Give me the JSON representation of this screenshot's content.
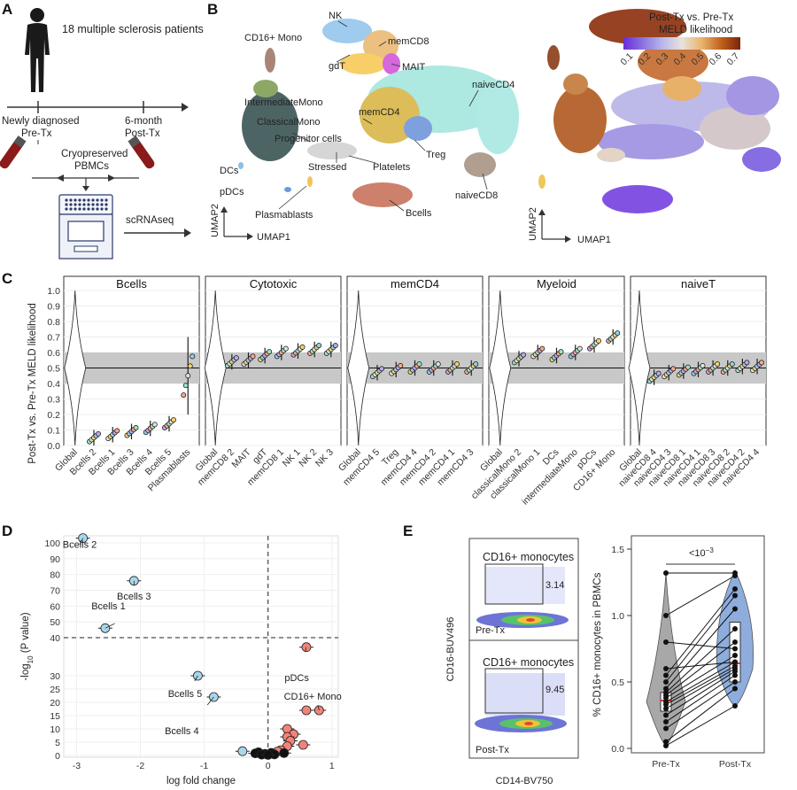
{
  "panels": {
    "A": {
      "letter": "A",
      "cohort": "18 multiple sclerosis patients",
      "t0_line1": "Newly diagnosed",
      "t0_line2": "Pre-Tx",
      "t1_line1": "6-month",
      "t1_line2": "Post-Tx",
      "cryo_line1": "Cryopreserved",
      "cryo_line2": "PBMCs",
      "method": "scRNAseq"
    },
    "B": {
      "letter": "B",
      "clusters": [
        "NK",
        "memCD8",
        "CD16+ Mono",
        "gdT",
        "MAIT",
        "naiveCD4",
        "IntermediateMono",
        "ClassicalMono",
        "memCD4",
        "Progenitor cells",
        "Treg",
        "Stressed",
        "Platelets",
        "DCs",
        "pDCs",
        "naiveCD8",
        "Plasmablasts",
        "Bcells"
      ],
      "umap_x": "UMAP1",
      "umap_y": "UMAP2",
      "legend_title_line1": "Post-Tx vs. Pre-Tx",
      "legend_title_line2": "MELD likelihood",
      "legend_ticks": [
        "0.1",
        "0.2",
        "0.3",
        "0.4",
        "0.5",
        "0.6",
        "0.7"
      ],
      "legend_colors": [
        "#6a2bdc",
        "#8a74e0",
        "#b9b7ea",
        "#e8e2dc",
        "#e9b56f",
        "#c0621c",
        "#7a2408"
      ]
    },
    "C": {
      "letter": "C",
      "ylabel": "Post-Tx vs. Pre-Tx MELD likelihood",
      "yticks": [
        "0.0",
        "0.1",
        "0.2",
        "0.3",
        "0.4",
        "0.5",
        "0.6",
        "0.7",
        "0.8",
        "0.9",
        "1.0"
      ],
      "band_color": "#c8c8c8"
    },
    "D": {
      "letter": "D",
      "xlabel": "log fold change",
      "ylabel_pre": "-log",
      "ylabel_sub": "10",
      "ylabel_post": " (P value)",
      "xticks": [
        "-3",
        "-2",
        "-1",
        "0",
        "1"
      ],
      "yticks": [
        "0",
        "5",
        "10",
        "15",
        "20",
        "25",
        "30",
        "40",
        "50",
        "60",
        "70",
        "80",
        "90",
        "100"
      ],
      "labels": [
        "Bcells 2",
        "Bcells 3",
        "Bcells 1",
        "Bcells 5",
        "Bcells 4",
        "pDCs",
        "CD16+ Mono"
      ]
    },
    "E": {
      "letter": "E",
      "gate_label": "CD16+ monocytes",
      "pre_value": "3.14",
      "post_value": "9.45",
      "pre_tag": "Pre-Tx",
      "post_tag": "Post-Tx",
      "flow_xlabel": "CD14-BV750",
      "flow_ylabel": "CD16-BUV496",
      "ylabel": "% CD16+ monocytes in PBMCs",
      "xticks": [
        "Pre-Tx",
        "Post-Tx"
      ],
      "yticks": [
        "0.0",
        "0.5",
        "1.0",
        "1.5"
      ],
      "pvalue": "<10",
      "pvalue_exp": "−3",
      "pre_color": "#9a9a9a",
      "post_color": "#7b9fd6"
    }
  },
  "chart_data": [
    {
      "id": "C",
      "type": "scatter",
      "description": "MELD likelihood by cluster, faceted",
      "ylim": [
        0,
        1
      ],
      "reference_line": 0.5,
      "band": [
        0.4,
        0.6
      ],
      "facets": [
        {
          "title": "Bcells",
          "categories": [
            "Global",
            "Bcells 2",
            "Bcells 1",
            "Bcells 3",
            "Bcells 4",
            "Bcells 5",
            "Plasmablasts"
          ],
          "values": [
            0.5,
            0.05,
            0.07,
            0.09,
            0.11,
            0.14,
            0.45
          ]
        },
        {
          "title": "Cytotoxic",
          "categories": [
            "Global",
            "memCD8 2",
            "MAIT",
            "gdT",
            "memCD8 1",
            "NK 1",
            "NK 2",
            "NK 3"
          ],
          "values": [
            0.5,
            0.54,
            0.55,
            0.58,
            0.6,
            0.61,
            0.62,
            0.62
          ]
        },
        {
          "title": "memCD4",
          "categories": [
            "Global",
            "memCD4 5",
            "Treg",
            "memCD4 4",
            "memCD4 2",
            "memCD4 1",
            "memCD4 3"
          ],
          "values": [
            0.5,
            0.47,
            0.49,
            0.5,
            0.5,
            0.5,
            0.5
          ]
        },
        {
          "title": "Myeloid",
          "categories": [
            "Global",
            "classicalMono 2",
            "classicalMono 1",
            "DCs",
            "intermediateMono",
            "pDCs",
            "CD16+ Mono"
          ],
          "values": [
            0.5,
            0.56,
            0.6,
            0.58,
            0.6,
            0.65,
            0.7
          ]
        },
        {
          "title": "naiveT",
          "categories": [
            "Global",
            "naiveCD8 4",
            "naiveCD4 3",
            "naiveCD8 1",
            "naiveCD4 1",
            "naiveCD8 3",
            "naiveCD8 2",
            "naiveCD4 2",
            "naiveCD4 4"
          ],
          "values": [
            0.5,
            0.44,
            0.47,
            0.48,
            0.49,
            0.5,
            0.5,
            0.51,
            0.51
          ]
        }
      ]
    },
    {
      "id": "D",
      "type": "scatter",
      "xlabel": "log fold change",
      "xlim": [
        -3.2,
        1.1
      ],
      "hline": 40,
      "vline": 0,
      "points": [
        {
          "x": -2.9,
          "y": 103,
          "label": "Bcells 2",
          "group": "down"
        },
        {
          "x": -2.1,
          "y": 76,
          "label": "Bcells 3",
          "group": "down"
        },
        {
          "x": -2.55,
          "y": 46,
          "label": "Bcells 1",
          "group": "down"
        },
        {
          "x": -1.1,
          "y": 30,
          "label": "Bcells 5",
          "group": "down"
        },
        {
          "x": -0.85,
          "y": 22,
          "label": "Bcells 4",
          "group": "down"
        },
        {
          "x": -0.4,
          "y": 1.6,
          "group": "down"
        },
        {
          "x": 0.6,
          "y": 34,
          "label": "pDCs",
          "group": "up"
        },
        {
          "x": 0.8,
          "y": 17,
          "label": "CD16+ Mono",
          "group": "up"
        },
        {
          "x": 0.6,
          "y": 17,
          "group": "up"
        },
        {
          "x": 0.3,
          "y": 10,
          "group": "up"
        },
        {
          "x": 0.4,
          "y": 8,
          "group": "up"
        },
        {
          "x": 0.3,
          "y": 7,
          "group": "up"
        },
        {
          "x": 0.35,
          "y": 5.5,
          "group": "up"
        },
        {
          "x": 0.55,
          "y": 4,
          "group": "up"
        },
        {
          "x": 0.3,
          "y": 3.5,
          "group": "up"
        },
        {
          "x": 0.2,
          "y": 2,
          "group": "up"
        },
        {
          "x": 0.15,
          "y": 1.5,
          "group": "up"
        },
        {
          "x": 0.05,
          "y": 1,
          "group": "ns"
        },
        {
          "x": -0.05,
          "y": 0.6,
          "group": "ns"
        },
        {
          "x": -0.15,
          "y": 1.2,
          "group": "ns"
        },
        {
          "x": -0.2,
          "y": 0.8,
          "group": "ns"
        },
        {
          "x": 0.1,
          "y": 0.4,
          "group": "ns"
        },
        {
          "x": -0.1,
          "y": 0.3,
          "group": "ns"
        },
        {
          "x": 0.25,
          "y": 0.9,
          "group": "ns"
        },
        {
          "x": 0.0,
          "y": 0.2,
          "group": "ns"
        }
      ]
    },
    {
      "id": "E",
      "type": "scatter",
      "categories": [
        "Pre-Tx",
        "Post-Tx"
      ],
      "ylim": [
        0,
        1.5
      ],
      "paired": [
        [
          0.02,
          0.32
        ],
        [
          0.05,
          0.45
        ],
        [
          0.15,
          0.5
        ],
        [
          0.2,
          0.55
        ],
        [
          0.25,
          0.58
        ],
        [
          0.3,
          0.6
        ],
        [
          0.33,
          0.62
        ],
        [
          0.35,
          0.65
        ],
        [
          0.38,
          0.7
        ],
        [
          0.4,
          0.8
        ],
        [
          0.42,
          0.9
        ],
        [
          0.45,
          1.05
        ],
        [
          0.5,
          1.15
        ],
        [
          0.55,
          1.2
        ],
        [
          0.6,
          0.65
        ],
        [
          0.8,
          0.75
        ],
        [
          1.0,
          1.3
        ],
        [
          1.32,
          1.32
        ]
      ],
      "medians": [
        0.36,
        0.64
      ]
    }
  ]
}
